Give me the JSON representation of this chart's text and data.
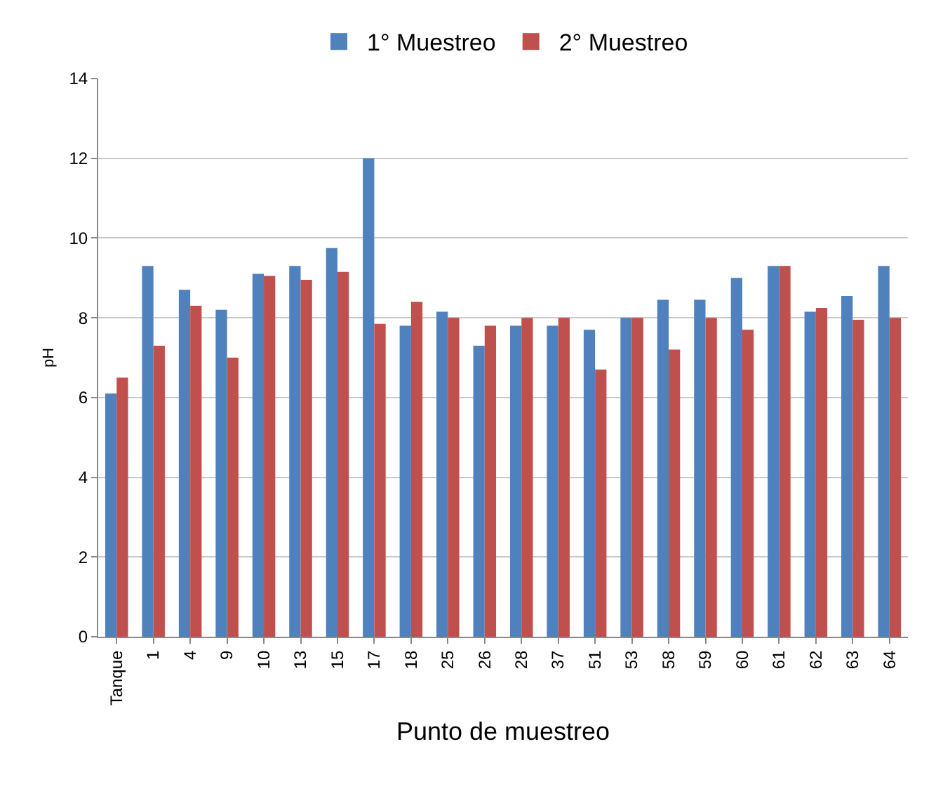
{
  "chart_data": {
    "type": "bar",
    "xlabel": "Punto de muestreo",
    "ylabel": "pH",
    "categories": [
      "Tanque",
      "1",
      "4",
      "9",
      "10",
      "13",
      "15",
      "17",
      "18",
      "25",
      "26",
      "28",
      "37",
      "51",
      "53",
      "58",
      "59",
      "60",
      "61",
      "62",
      "63",
      "64"
    ],
    "series": [
      {
        "name": "1° Muestreo",
        "color": "#4f81bd",
        "values": [
          6.1,
          9.3,
          8.7,
          8.2,
          9.1,
          9.3,
          9.75,
          12,
          7.8,
          8.15,
          7.3,
          7.8,
          7.8,
          7.7,
          8.0,
          8.45,
          8.45,
          9.0,
          9.3,
          8.15,
          8.55,
          9.3
        ]
      },
      {
        "name": "2° Muestreo",
        "color": "#c0504d",
        "values": [
          6.5,
          7.3,
          8.3,
          7.0,
          9.05,
          8.95,
          9.15,
          7.85,
          8.4,
          8.0,
          7.8,
          8.0,
          8.0,
          6.7,
          8.0,
          7.2,
          8.0,
          7.7,
          9.3,
          8.25,
          7.95,
          8.0
        ]
      }
    ],
    "ylim": [
      0,
      14
    ],
    "yticks": [
      0,
      2,
      4,
      6,
      8,
      10,
      12,
      14
    ],
    "grid": "y",
    "legend": "top"
  }
}
